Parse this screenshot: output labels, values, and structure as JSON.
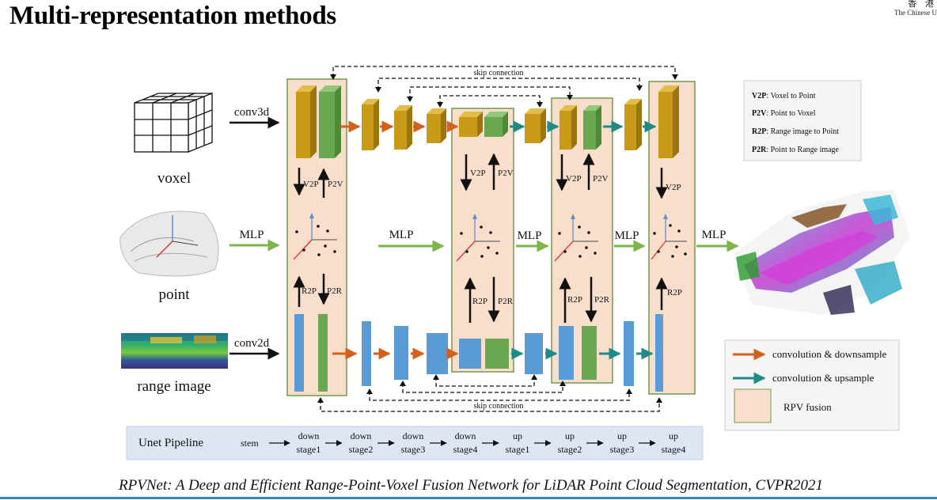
{
  "slide": {
    "title": "Multi-representation methods",
    "logo_cjk": "香 港",
    "logo_en": "The Chinese U"
  },
  "inputs": {
    "voxel": "voxel",
    "point": "point",
    "range": "range image"
  },
  "ops": {
    "conv3d": "conv3d",
    "conv2d": "conv2d",
    "mlp": "MLP",
    "v2p": "V2P",
    "p2v": "P2V",
    "r2p": "R2P",
    "p2r": "P2R",
    "skip": "skip connection"
  },
  "abbrev_legend": [
    {
      "key": "V2P",
      "desc": ": Voxel to Point"
    },
    {
      "key": "P2V",
      "desc": ": Point to Voxel"
    },
    {
      "key": "R2P",
      "desc": ": Range image to Point"
    },
    {
      "key": "P2R",
      "desc": ": Point to Range image"
    }
  ],
  "color_legend": [
    {
      "label": "convolution & downsample",
      "color": "#d4601e"
    },
    {
      "label": "convolution & upsample",
      "color": "#1f8a86"
    },
    {
      "label": "RPV fusion",
      "color": "#f9dfcb"
    }
  ],
  "pipeline": {
    "label": "Unet Pipeline",
    "stem": "stem",
    "stages": [
      {
        "a": "down",
        "b": "stage1"
      },
      {
        "a": "down",
        "b": "stage2"
      },
      {
        "a": "down",
        "b": "stage3"
      },
      {
        "a": "down",
        "b": "stage4"
      },
      {
        "a": "up",
        "b": "stage1"
      },
      {
        "a": "up",
        "b": "stage2"
      },
      {
        "a": "up",
        "b": "stage3"
      },
      {
        "a": "up",
        "b": "stage4"
      }
    ]
  },
  "citation": "RPVNet: A Deep and Efficient Range-Point-Voxel Fusion Network for LiDAR Point Cloud Segmentation, CVPR2021",
  "colors": {
    "fusion_fill": "#f9dfcb",
    "fusion_border": "#6f9a4f",
    "voxel_gold": "#c89a18",
    "voxel_green": "#6aa84f",
    "range_blue": "#5b9bd5",
    "range_green": "#6aa84f",
    "mlp_green": "#7ab648",
    "pipeline_bg": "#dfe6f3"
  }
}
